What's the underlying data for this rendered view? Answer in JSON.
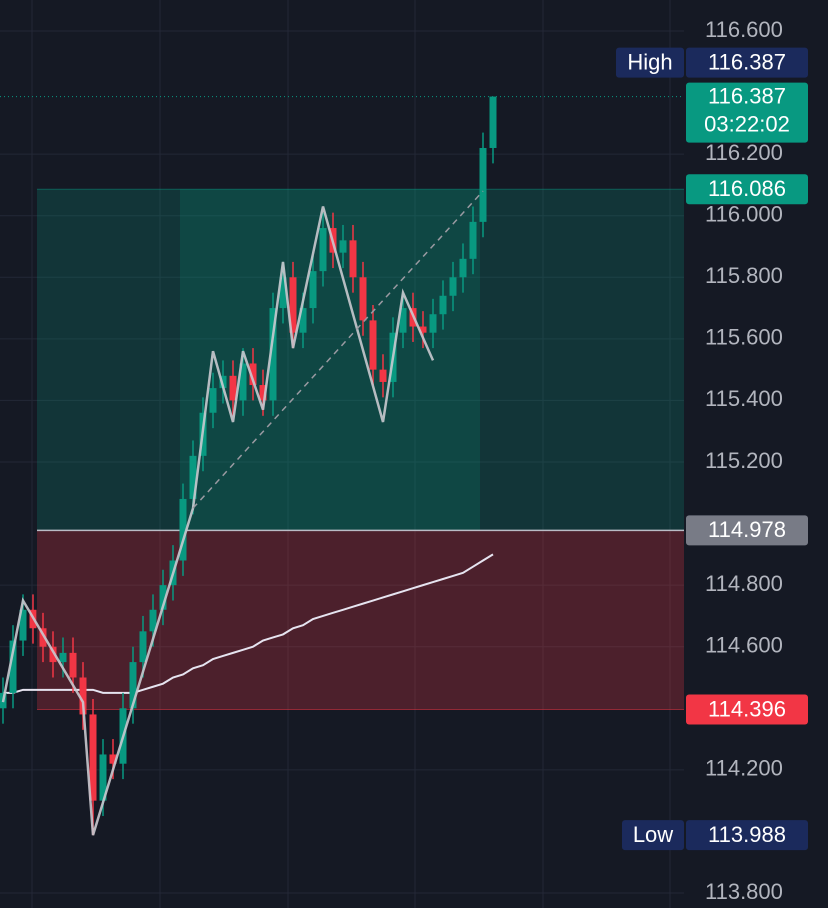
{
  "chart_data": {
    "type": "candlestick",
    "candles": {
      "open": [
        114.4,
        114.45,
        114.62,
        114.72,
        114.66,
        114.6,
        114.55,
        114.58,
        114.5,
        114.38,
        114.1,
        114.25,
        114.22,
        114.4,
        114.55,
        114.65,
        114.72,
        114.8,
        114.88,
        115.08,
        115.22,
        115.36,
        115.44,
        115.48,
        115.4,
        115.52,
        115.45,
        115.4,
        115.7,
        115.8,
        115.62,
        115.7,
        115.82,
        115.96,
        115.88,
        115.92,
        115.8,
        115.66,
        115.5,
        115.46,
        115.62,
        115.7,
        115.64,
        115.62,
        115.68,
        115.74,
        115.8,
        115.86,
        115.98,
        116.22
      ],
      "high": [
        114.5,
        114.67,
        114.77,
        114.77,
        114.71,
        114.65,
        114.63,
        114.63,
        114.55,
        114.43,
        114.3,
        114.3,
        114.45,
        114.6,
        114.7,
        114.77,
        114.85,
        114.93,
        115.13,
        115.27,
        115.41,
        115.49,
        115.53,
        115.53,
        115.57,
        115.57,
        115.5,
        115.75,
        115.85,
        115.85,
        115.75,
        115.87,
        116.01,
        116.01,
        115.97,
        115.97,
        115.85,
        115.71,
        115.55,
        115.67,
        115.75,
        115.75,
        115.69,
        115.73,
        115.79,
        115.85,
        115.91,
        116.03,
        116.27,
        116.387
      ],
      "low": [
        114.35,
        114.4,
        114.57,
        114.61,
        114.55,
        114.5,
        114.5,
        114.45,
        114.33,
        113.988,
        114.05,
        114.17,
        114.17,
        114.35,
        114.5,
        114.6,
        114.67,
        114.75,
        114.83,
        115.03,
        115.17,
        115.31,
        115.39,
        115.35,
        115.35,
        115.4,
        115.35,
        115.35,
        115.65,
        115.57,
        115.57,
        115.65,
        115.77,
        115.83,
        115.83,
        115.75,
        115.61,
        115.45,
        115.41,
        115.41,
        115.57,
        115.59,
        115.57,
        115.57,
        115.63,
        115.69,
        115.75,
        115.81,
        115.93,
        116.17
      ],
      "close": [
        114.45,
        114.62,
        114.72,
        114.66,
        114.6,
        114.55,
        114.58,
        114.5,
        114.38,
        114.1,
        114.25,
        114.22,
        114.4,
        114.55,
        114.65,
        114.72,
        114.8,
        114.88,
        115.08,
        115.22,
        115.36,
        115.44,
        115.48,
        115.4,
        115.52,
        115.45,
        115.4,
        115.7,
        115.8,
        115.62,
        115.7,
        115.82,
        115.96,
        115.88,
        115.92,
        115.8,
        115.66,
        115.5,
        115.46,
        115.62,
        115.7,
        115.64,
        115.62,
        115.68,
        115.74,
        115.8,
        115.86,
        115.98,
        116.22,
        116.387
      ]
    },
    "up_color": "#089981",
    "down_color": "#f23645",
    "ylim": [
      113.8,
      116.6
    ],
    "yticks": [
      {
        "value": 116.6,
        "label": "116.600"
      },
      {
        "value": 116.2,
        "label": "116.200"
      },
      {
        "value": 116.0,
        "label": "116.000"
      },
      {
        "value": 115.8,
        "label": "115.800"
      },
      {
        "value": 115.6,
        "label": "115.600"
      },
      {
        "value": 115.4,
        "label": "115.400"
      },
      {
        "value": 115.2,
        "label": "115.200"
      },
      {
        "value": 114.8,
        "label": "114.800"
      },
      {
        "value": 114.6,
        "label": "114.600"
      },
      {
        "value": 114.2,
        "label": "114.200"
      },
      {
        "value": 113.8,
        "label": "113.800"
      }
    ],
    "grid": true,
    "moving_average": {
      "color": "#e6e4f0",
      "values": [
        114.45,
        114.45,
        114.46,
        114.46,
        114.46,
        114.46,
        114.46,
        114.46,
        114.46,
        114.46,
        114.45,
        114.45,
        114.45,
        114.45,
        114.46,
        114.47,
        114.48,
        114.5,
        114.51,
        114.53,
        114.54,
        114.56,
        114.57,
        114.58,
        114.59,
        114.6,
        114.62,
        114.63,
        114.64,
        114.66,
        114.67,
        114.69,
        114.7,
        114.71,
        114.72,
        114.73,
        114.74,
        114.75,
        114.76,
        114.77,
        114.78,
        114.79,
        114.8,
        114.81,
        114.82,
        114.83,
        114.84,
        114.86,
        114.88,
        114.9
      ]
    },
    "zigzag": {
      "color": "#c9c9cf",
      "x": [
        0,
        2,
        8,
        9,
        19,
        21,
        23,
        24,
        26,
        28,
        29,
        32,
        38,
        40,
        43
      ],
      "values": [
        114.42,
        114.75,
        114.42,
        113.988,
        115.05,
        115.56,
        115.33,
        115.56,
        115.37,
        115.85,
        115.57,
        116.03,
        115.33,
        115.75,
        115.53
      ]
    },
    "trendline": {
      "color": "#9a9aa2",
      "x": [
        19,
        48
      ],
      "values": [
        115.05,
        116.08
      ]
    },
    "session_high": {
      "label": "High",
      "value": 116.387,
      "color": "#1b2a5c"
    },
    "session_low": {
      "label": "Low",
      "value": 113.988,
      "color": "#1b2a5c"
    },
    "last_price": {
      "value": 116.387,
      "countdown": "03:22:02",
      "color": "#089981"
    },
    "position": {
      "target": 116.086,
      "entry": 114.978,
      "stop": 114.396,
      "target_color": "#089981",
      "entry_color": "#787b86",
      "stop_color": "#f23645"
    }
  }
}
